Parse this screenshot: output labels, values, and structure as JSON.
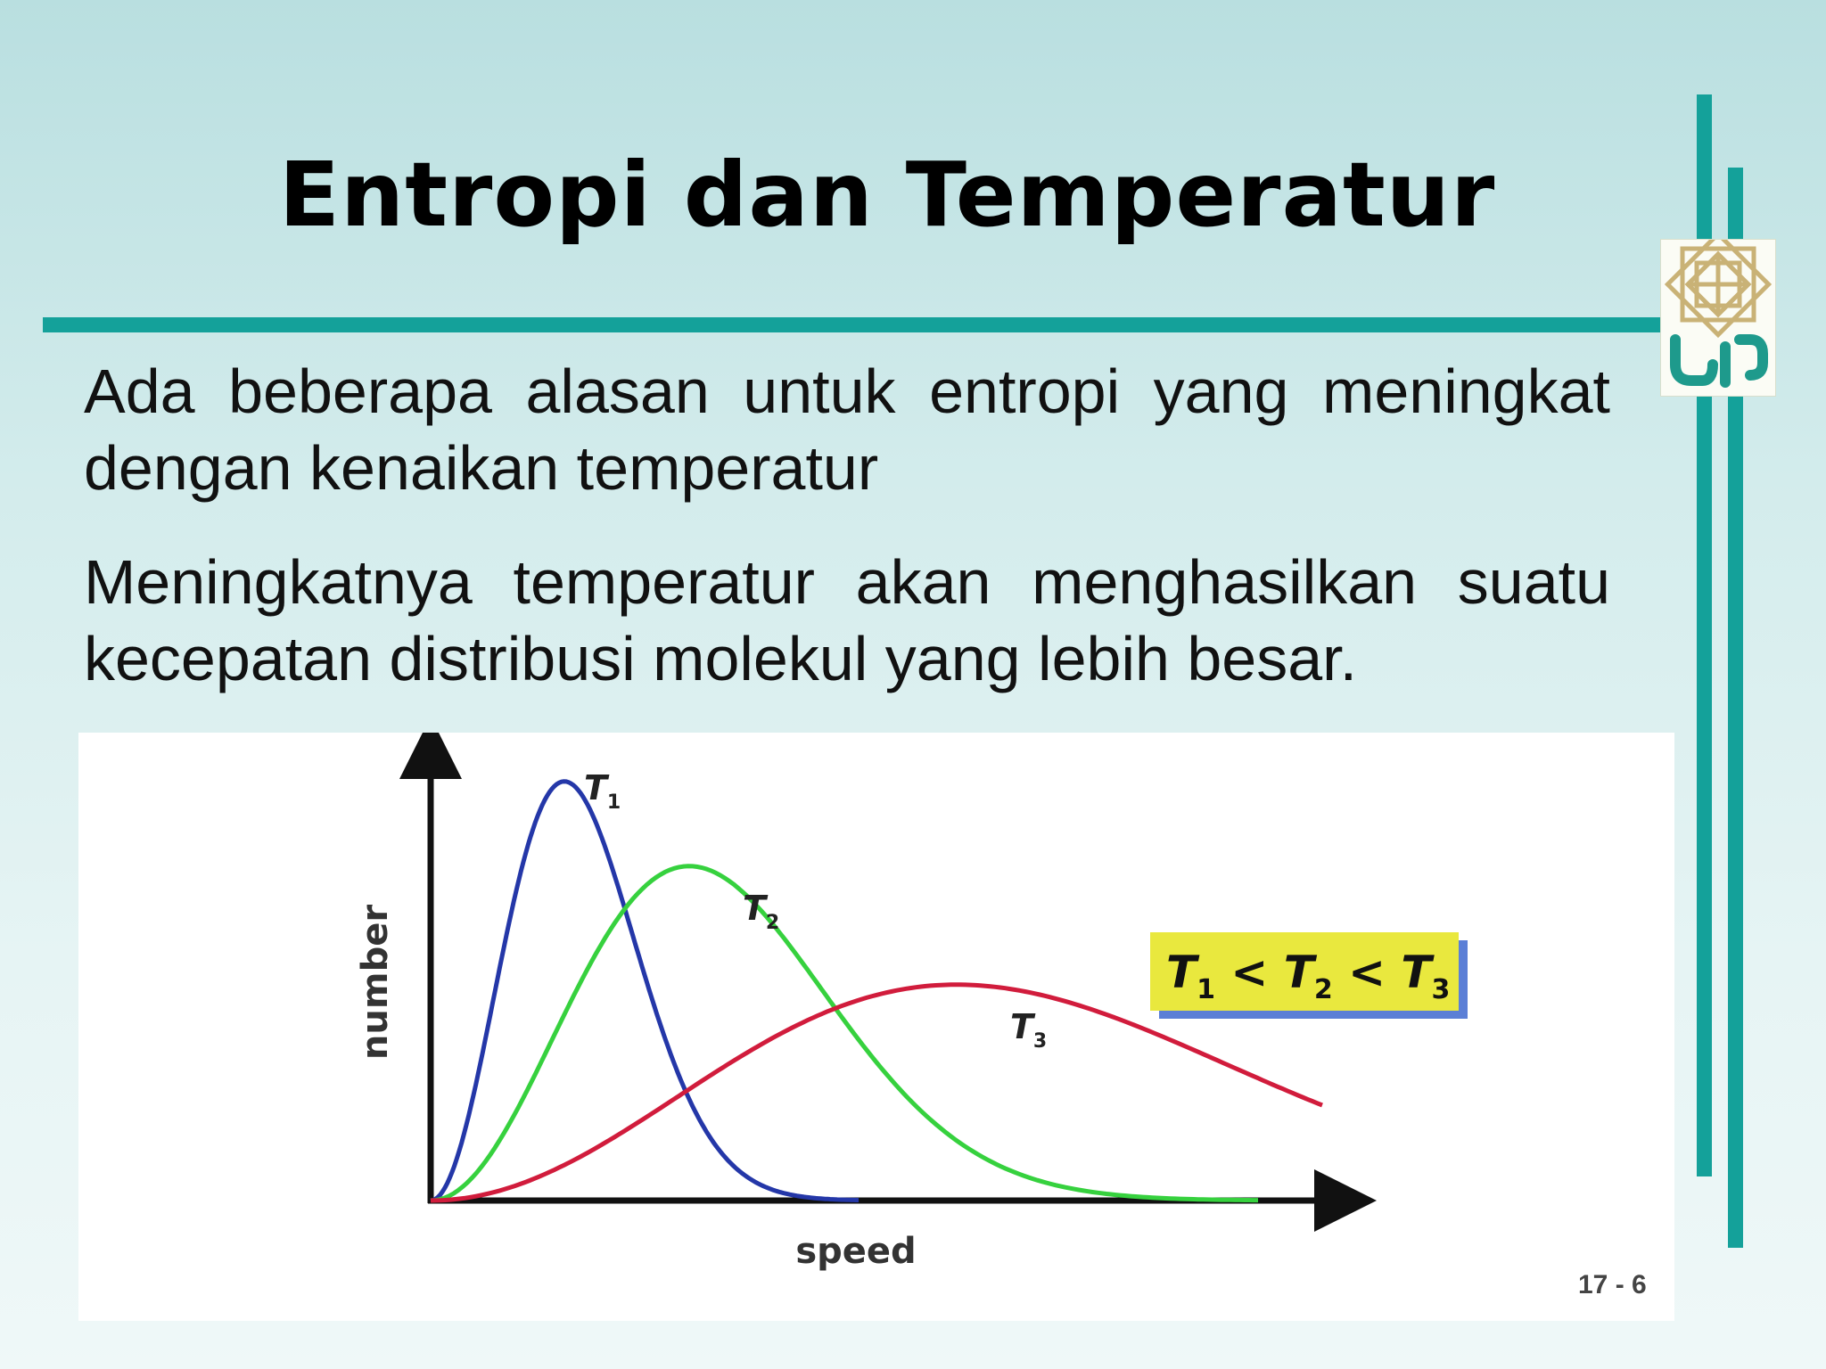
{
  "slide": {
    "title": "Entropi dan Temperatur",
    "paragraphs": [
      "Ada beberapa alasan untuk entropi yang meningkat dengan kenaikan temperatur",
      "Meningkatnya temperatur akan menghasilkan suatu kecepatan distribusi molekul yang lebih besar."
    ],
    "slide_number": "17 - 6",
    "accent_color": "#14a19a"
  },
  "logo": {
    "text": "uin",
    "color": "#1e9a8c",
    "ornament_color": "#c9b276"
  },
  "chart_data": {
    "type": "line",
    "xlabel": "speed",
    "ylabel": "number",
    "grid": false,
    "series": [
      {
        "name": "T",
        "sub": "1",
        "color": "#2437a8",
        "peak_speed": 0.15,
        "peak_number": 0.99
      },
      {
        "name": "T",
        "sub": "2",
        "color": "#36d13e",
        "peak_speed": 0.29,
        "peak_number": 0.79
      },
      {
        "name": "T",
        "sub": "3",
        "color": "#d11c3c",
        "peak_speed": 0.59,
        "peak_number": 0.51
      }
    ],
    "annotation": {
      "parts": [
        {
          "t": "T",
          "sub": "1"
        },
        {
          "op": "<"
        },
        {
          "t": "T",
          "sub": "2"
        },
        {
          "op": "<"
        },
        {
          "t": "T",
          "sub": "3"
        }
      ],
      "background": "#e9e83e",
      "shadow": "#5b7fd6"
    }
  }
}
